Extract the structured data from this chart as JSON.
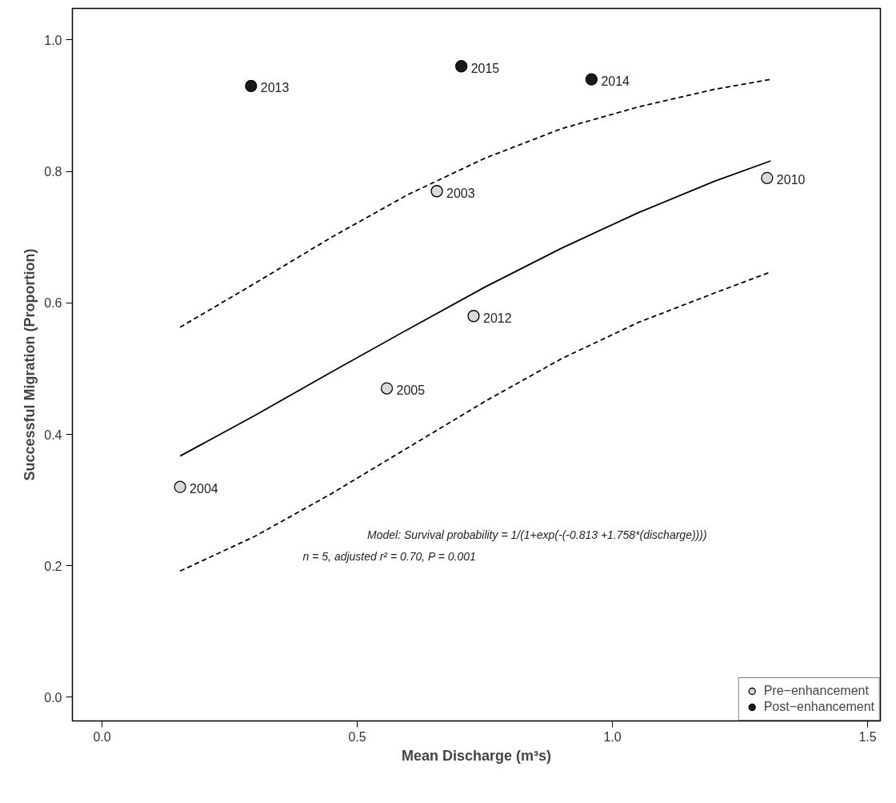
{
  "chart_data": {
    "type": "scatter",
    "xlabel": "Mean Discharge (m³s)",
    "ylabel": "Successful Migration (Proportion)",
    "xlim": [
      -0.058,
      1.525
    ],
    "ylim": [
      -0.036,
      1.048
    ],
    "xticks": [
      {
        "value": 0,
        "label": "0.0"
      },
      {
        "value": 0.5,
        "label": "0.5"
      },
      {
        "value": 1,
        "label": "1.0"
      },
      {
        "value": 1.5,
        "label": "1.5"
      }
    ],
    "yticks": [
      {
        "value": 0,
        "label": "0.0"
      },
      {
        "value": 0.2,
        "label": "0.2"
      },
      {
        "value": 0.4,
        "label": "0.4"
      },
      {
        "value": 0.6,
        "label": "0.6"
      },
      {
        "value": 0.8,
        "label": "0.8"
      },
      {
        "value": 1,
        "label": "1.0"
      }
    ],
    "grid": false,
    "legend": "bottom right",
    "marker": "circle",
    "series": [
      {
        "type": "line",
        "color": "#000000",
        "line_style": "solid",
        "marker": "none",
        "x": [
          0.153,
          0.3,
          0.45,
          0.6,
          0.75,
          0.9,
          1.05,
          1.2,
          1.31
        ],
        "values": [
          0.367,
          0.429,
          0.495,
          0.56,
          0.624,
          0.683,
          0.737,
          0.785,
          0.816
        ]
      },
      {
        "type": "line",
        "color": "#000000",
        "line_style": "dashed",
        "marker": "none",
        "x": [
          0.153,
          0.3,
          0.45,
          0.6,
          0.75,
          0.9,
          1.05,
          1.2,
          1.31
        ],
        "values": [
          0.563,
          0.63,
          0.7,
          0.765,
          0.82,
          0.865,
          0.898,
          0.925,
          0.94
        ]
      },
      {
        "type": "line",
        "color": "#000000",
        "line_style": "dashed",
        "marker": "none",
        "x": [
          0.153,
          0.3,
          0.45,
          0.6,
          0.75,
          0.9,
          1.05,
          1.2,
          1.31
        ],
        "values": [
          0.192,
          0.245,
          0.31,
          0.38,
          0.45,
          0.515,
          0.57,
          0.615,
          0.647
        ]
      },
      {
        "name": "Pre−enhancement",
        "color": "#d9d9d9",
        "x": [
          0.153,
          0.558,
          0.656,
          0.728,
          1.303
        ],
        "values": [
          0.32,
          0.47,
          0.77,
          0.58,
          0.79
        ]
      },
      {
        "name": "Post−enhancement",
        "color": "#1a1a1a",
        "x": [
          0.292,
          0.704,
          0.959
        ],
        "values": [
          0.93,
          0.96,
          0.94
        ]
      }
    ],
    "annotations": [
      {
        "text": "2004",
        "x": 0.153,
        "y": 0.32
      },
      {
        "text": "2005",
        "x": 0.558,
        "y": 0.47
      },
      {
        "text": "2003",
        "x": 0.656,
        "y": 0.77
      },
      {
        "text": "2012",
        "x": 0.728,
        "y": 0.58
      },
      {
        "text": "2010",
        "x": 1.303,
        "y": 0.79
      },
      {
        "text": "2013",
        "x": 0.292,
        "y": 0.93
      },
      {
        "text": "2015",
        "x": 0.704,
        "y": 0.96
      },
      {
        "text": "2014",
        "x": 0.959,
        "y": 0.94
      },
      "Model: Survival probability = 1/(1+exp(-(-0.813 +1.758*(discharge))))",
      "n = 5, adjusted r² = 0.70, P = 0.001"
    ]
  }
}
